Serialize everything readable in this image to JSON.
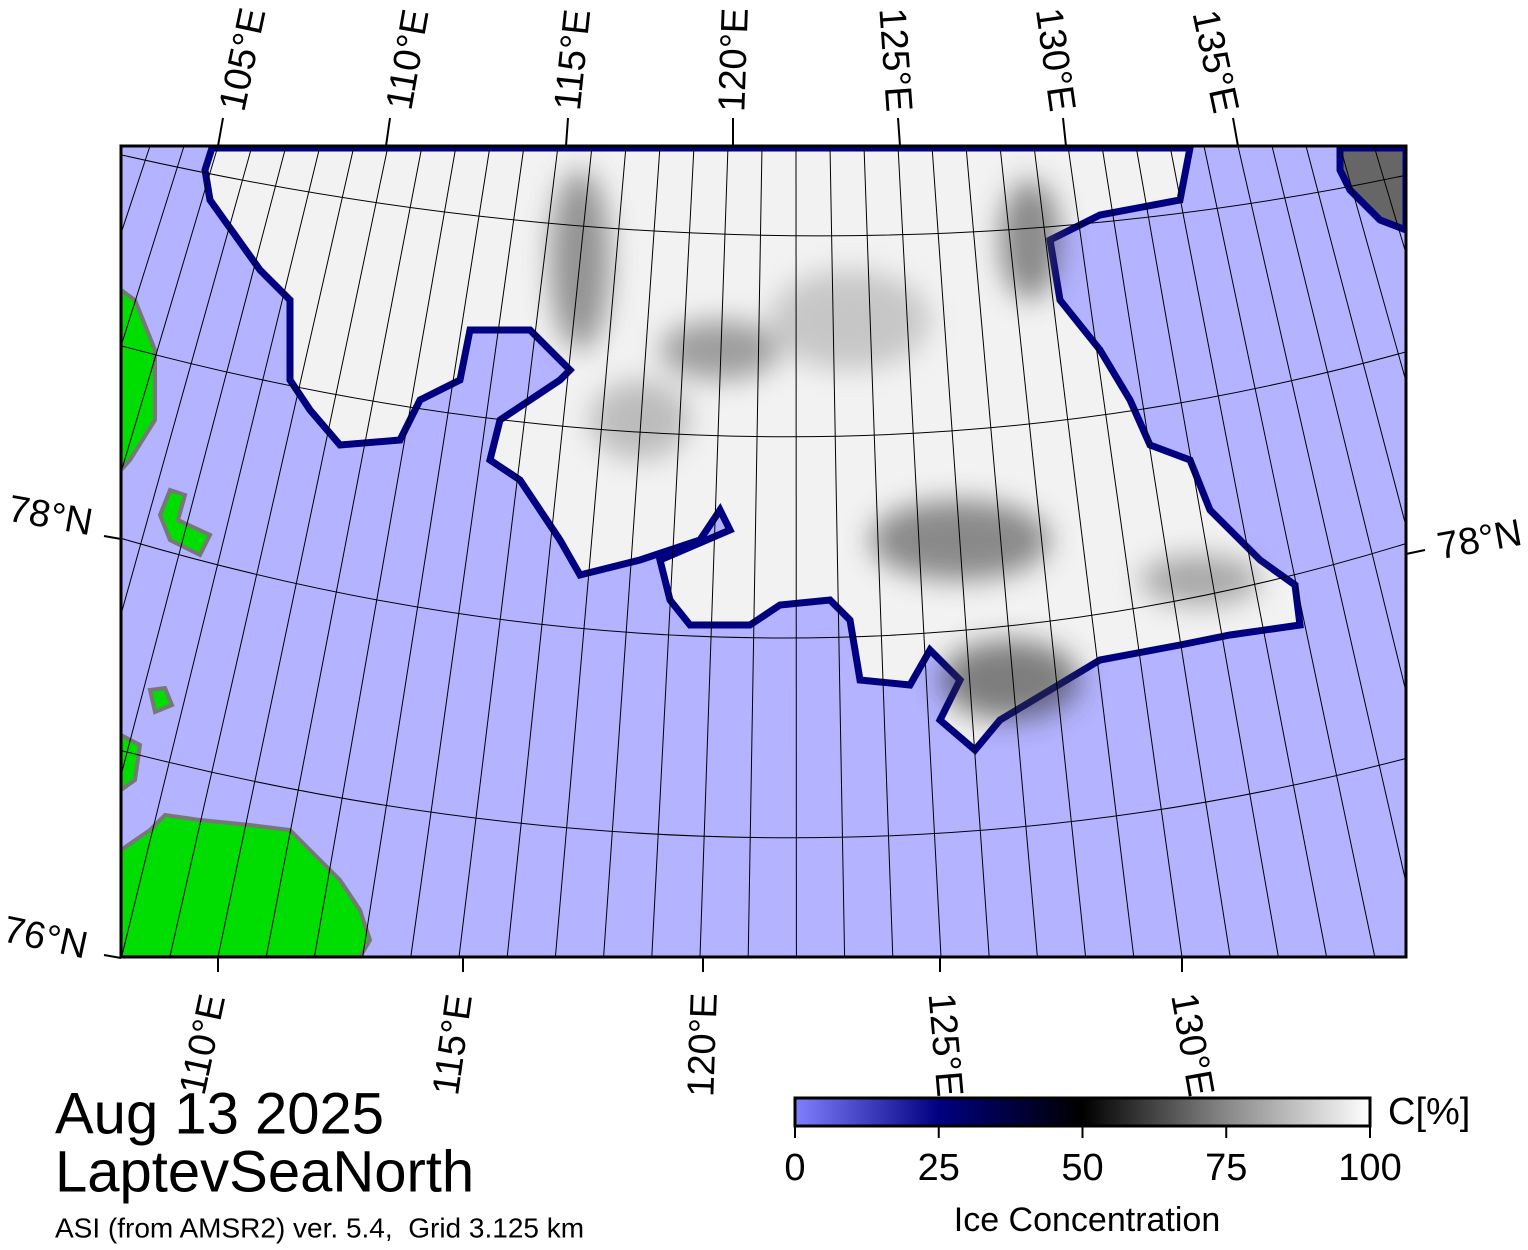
{
  "map": {
    "meridian_labels_top": [
      "105°E",
      "110°E",
      "115°E",
      "120°E",
      "125°E",
      "130°E",
      "135°E"
    ],
    "meridian_labels_bottom": [
      "110°E",
      "115°E",
      "120°E",
      "125°E",
      "130°E"
    ],
    "parallel_labels": [
      "78°N",
      "78°N",
      "76°N"
    ]
  },
  "date": "Aug 13 2025",
  "region": "LaptevSeaNorth",
  "source": "ASI (from AMSR2) ver. 5.4,  Grid 3.125 km",
  "colorbar": {
    "title": "Ice Concentration",
    "unit": "C[%]",
    "range": [
      0,
      100
    ],
    "ticks": [
      0,
      25,
      50,
      75,
      100
    ]
  }
}
